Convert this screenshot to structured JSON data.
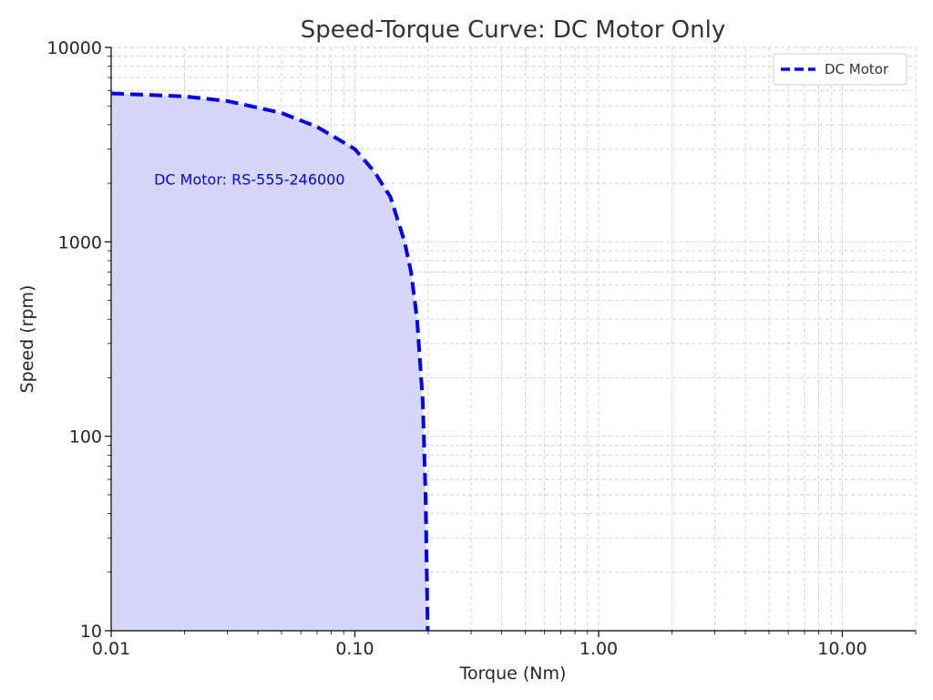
{
  "colors": {
    "series": "#0000ee",
    "fill": "#d6d6fb",
    "grid": "#cfcfcf"
  },
  "chart_data": {
    "type": "area",
    "title": "Speed-Torque Curve: DC Motor Only",
    "xlabel": "Torque (Nm)",
    "ylabel": "Speed (rpm)",
    "xscale": "log",
    "yscale": "log",
    "xlim": [
      0.01,
      20
    ],
    "ylim": [
      10,
      10000
    ],
    "grid": true,
    "legend_position": "top-right",
    "x_tick_labels": [
      "0.01",
      "0.10",
      "1.00",
      "10.00"
    ],
    "y_tick_labels": [
      "10",
      "100",
      "1000",
      "10000"
    ],
    "series": [
      {
        "name": "DC Motor",
        "line_style": "dashed",
        "filled": true,
        "x": [
          0.01,
          0.02,
          0.03,
          0.05,
          0.07,
          0.1,
          0.12,
          0.14,
          0.16,
          0.17,
          0.18,
          0.19,
          0.195,
          0.199
        ],
        "y": [
          5800,
          5600,
          5300,
          4600,
          3900,
          3000,
          2300,
          1700,
          1000,
          700,
          400,
          150,
          50,
          10
        ]
      }
    ],
    "annotations": [
      {
        "text": "DC Motor: RS-555-246000",
        "x": 0.015,
        "y": 2100
      }
    ]
  }
}
